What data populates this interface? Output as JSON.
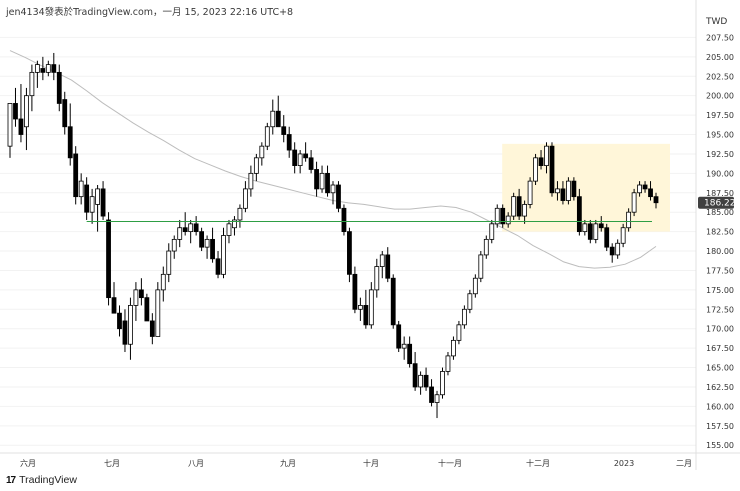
{
  "header": {
    "caption": "jen4134發表於TradingView.com，一月 15, 2023 22:16 UTC+8"
  },
  "footer": {
    "brand": "TradingView",
    "logo_icon": "tradingview-logo-icon"
  },
  "colors": {
    "up_body": "#ffffff",
    "up_outline": "#000000",
    "down_body": "#000000",
    "moving_average": "#bdbdbd",
    "support_line": "#2e9e44",
    "highlight_zone": "#fff6d9",
    "grid": "#f2f2f2",
    "price_badge": "#404040"
  },
  "chart_data": {
    "type": "candlestick",
    "currency": "TWD",
    "ylim": [
      154,
      210
    ],
    "y_ticks": [
      155.0,
      157.5,
      160.0,
      162.5,
      165.0,
      167.5,
      170.0,
      172.5,
      175.0,
      177.5,
      180.0,
      182.5,
      185.0,
      187.5,
      190.0,
      192.5,
      195.0,
      197.5,
      200.0,
      202.5,
      205.0,
      207.5
    ],
    "x_labels": [
      "六月",
      "七月",
      "八月",
      "九月",
      "十月",
      "十一月",
      "十二月",
      "2023",
      "二月"
    ],
    "last_price": "186.22",
    "support_level": 183.8,
    "highlight_zone": {
      "from": "十一月 late",
      "to": "2023 Jan",
      "price_range": [
        182.5,
        193.8
      ]
    },
    "moving_average_series": [
      [
        205.8,
        204.9,
        203.9,
        203.0,
        202.0,
        200.6,
        199.1,
        197.8,
        196.5,
        195.3,
        194.2,
        193.0,
        191.9,
        191.1,
        190.3,
        189.6,
        189.0,
        188.5,
        188.0,
        187.5,
        187.0,
        186.5,
        186.2,
        186.0,
        185.7,
        185.4,
        185.4,
        185.6,
        185.8,
        185.6,
        185.0,
        184.0,
        183.0,
        182.0,
        180.7,
        179.7,
        178.6,
        178.0,
        177.8,
        177.9,
        178.3,
        179.2,
        180.6
      ]
    ],
    "candles": [
      [
        193.5,
        199.0,
        192.0,
        199.0
      ],
      [
        199.0,
        201.0,
        196.0,
        197.0
      ],
      [
        197.0,
        201.5,
        194.0,
        195.0
      ],
      [
        196.0,
        201.0,
        193.0,
        200.0
      ],
      [
        200.0,
        204.0,
        198.0,
        203.0
      ],
      [
        203.0,
        204.5,
        201.0,
        204.0
      ],
      [
        203.5,
        205.0,
        202.0,
        203.0
      ],
      [
        203.0,
        204.5,
        202.5,
        204.0
      ],
      [
        204.0,
        205.5,
        202.0,
        203.0
      ],
      [
        203.0,
        204.0,
        198.0,
        199.0
      ],
      [
        199.5,
        200.5,
        195.0,
        196.0
      ],
      [
        196.0,
        199.0,
        191.0,
        192.0
      ],
      [
        192.5,
        193.5,
        186.0,
        187.0
      ],
      [
        187.0,
        190.0,
        186.0,
        189.0
      ],
      [
        188.5,
        189.5,
        184.0,
        185.0
      ],
      [
        185.0,
        188.0,
        183.5,
        187.0
      ],
      [
        186.0,
        188.5,
        182.5,
        188.0
      ],
      [
        188.0,
        189.0,
        184.0,
        184.5
      ],
      [
        184.0,
        185.0,
        173.0,
        174.0
      ],
      [
        174.0,
        176.0,
        172.0,
        172.0
      ],
      [
        172.0,
        173.0,
        169.0,
        170.0
      ],
      [
        171.0,
        172.5,
        167.0,
        168.0
      ],
      [
        168.0,
        174.0,
        166.0,
        173.0
      ],
      [
        173.0,
        176.0,
        171.0,
        175.0
      ],
      [
        175.0,
        176.5,
        173.0,
        174.0
      ],
      [
        174.0,
        174.5,
        171.0,
        171.0
      ],
      [
        171.0,
        172.0,
        168.0,
        169.0
      ],
      [
        169.0,
        176.0,
        169.0,
        175.0
      ],
      [
        175.0,
        178.0,
        173.5,
        177.0
      ],
      [
        177.0,
        181.0,
        176.0,
        180.0
      ],
      [
        180.0,
        182.0,
        179.0,
        181.5
      ],
      [
        181.5,
        184.0,
        180.5,
        183.0
      ],
      [
        183.0,
        185.0,
        182.0,
        182.5
      ],
      [
        182.5,
        184.0,
        181.0,
        183.5
      ],
      [
        183.5,
        184.5,
        182.0,
        182.5
      ],
      [
        182.5,
        183.0,
        180.0,
        180.5
      ],
      [
        180.5,
        182.0,
        179.0,
        181.5
      ],
      [
        181.5,
        183.0,
        178.5,
        179.0
      ],
      [
        179.0,
        180.0,
        176.5,
        177.0
      ],
      [
        177.0,
        183.0,
        176.5,
        182.0
      ],
      [
        182.0,
        184.0,
        181.0,
        183.5
      ],
      [
        183.0,
        184.5,
        182.0,
        184.0
      ],
      [
        184.0,
        186.0,
        183.0,
        185.5
      ],
      [
        185.5,
        189.0,
        185.0,
        188.0
      ],
      [
        188.0,
        191.0,
        187.0,
        190.0
      ],
      [
        190.0,
        192.5,
        189.0,
        192.0
      ],
      [
        192.0,
        194.0,
        191.0,
        193.5
      ],
      [
        193.5,
        196.5,
        193.0,
        196.0
      ],
      [
        196.0,
        199.5,
        195.0,
        198.0
      ],
      [
        198.0,
        200.0,
        196.0,
        196.0
      ],
      [
        196.0,
        197.5,
        194.0,
        195.0
      ],
      [
        195.0,
        196.0,
        192.0,
        193.0
      ],
      [
        193.0,
        194.0,
        190.0,
        191.0
      ],
      [
        191.0,
        193.0,
        190.0,
        192.5
      ],
      [
        192.5,
        194.0,
        191.5,
        192.0
      ],
      [
        192.0,
        193.0,
        190.0,
        190.5
      ],
      [
        190.5,
        191.5,
        187.0,
        188.0
      ],
      [
        188.0,
        191.0,
        187.5,
        190.0
      ],
      [
        190.0,
        191.0,
        187.0,
        187.5
      ],
      [
        187.5,
        189.0,
        186.0,
        188.5
      ],
      [
        188.5,
        189.0,
        185.0,
        185.5
      ],
      [
        185.5,
        186.0,
        182.0,
        182.5
      ],
      [
        182.5,
        183.0,
        176.0,
        177.0
      ],
      [
        177.0,
        178.0,
        172.0,
        172.5
      ],
      [
        172.5,
        174.0,
        171.0,
        173.0
      ],
      [
        173.0,
        175.0,
        170.0,
        170.5
      ],
      [
        170.5,
        176.0,
        170.0,
        175.0
      ],
      [
        175.0,
        179.0,
        174.0,
        178.0
      ],
      [
        178.0,
        180.0,
        176.5,
        179.5
      ],
      [
        179.5,
        180.5,
        176.0,
        176.5
      ],
      [
        176.5,
        177.0,
        170.0,
        170.5
      ],
      [
        170.5,
        171.0,
        167.0,
        167.5
      ],
      [
        167.5,
        169.0,
        166.0,
        168.0
      ],
      [
        168.0,
        169.0,
        165.0,
        165.5
      ],
      [
        165.5,
        167.0,
        162.0,
        162.5
      ],
      [
        162.5,
        164.5,
        161.5,
        164.0
      ],
      [
        164.0,
        165.0,
        162.0,
        162.5
      ],
      [
        162.5,
        163.5,
        160.0,
        160.5
      ],
      [
        160.5,
        162.0,
        158.5,
        161.5
      ],
      [
        161.5,
        165.0,
        161.0,
        164.5
      ],
      [
        164.5,
        167.0,
        164.0,
        166.5
      ],
      [
        166.5,
        169.0,
        166.0,
        168.5
      ],
      [
        168.5,
        171.0,
        168.0,
        170.5
      ],
      [
        170.5,
        173.0,
        170.0,
        172.5
      ],
      [
        172.5,
        175.0,
        172.0,
        174.5
      ],
      [
        174.5,
        177.0,
        174.0,
        176.5
      ],
      [
        176.5,
        180.0,
        176.0,
        179.5
      ],
      [
        179.5,
        182.0,
        179.0,
        181.5
      ],
      [
        181.5,
        184.0,
        181.0,
        183.5
      ],
      [
        183.5,
        186.0,
        183.0,
        185.5
      ],
      [
        185.5,
        186.0,
        183.0,
        183.5
      ],
      [
        183.5,
        185.0,
        183.0,
        184.5
      ],
      [
        184.5,
        187.5,
        184.0,
        187.0
      ],
      [
        187.0,
        188.0,
        184.0,
        184.5
      ],
      [
        184.5,
        186.5,
        183.5,
        186.0
      ],
      [
        186.0,
        189.5,
        185.5,
        189.0
      ],
      [
        189.0,
        192.5,
        188.5,
        192.0
      ],
      [
        192.0,
        193.0,
        190.5,
        191.0
      ],
      [
        191.0,
        194.0,
        190.0,
        193.5
      ],
      [
        193.5,
        194.0,
        187.0,
        187.5
      ],
      [
        187.5,
        189.0,
        186.5,
        188.0
      ],
      [
        188.0,
        189.0,
        186.0,
        186.5
      ],
      [
        186.5,
        189.5,
        186.0,
        189.0
      ],
      [
        189.0,
        189.5,
        186.5,
        187.0
      ],
      [
        187.0,
        188.0,
        182.0,
        182.5
      ],
      [
        182.5,
        184.0,
        182.0,
        183.5
      ],
      [
        183.5,
        184.0,
        181.0,
        181.5
      ],
      [
        181.5,
        184.0,
        181.0,
        183.5
      ],
      [
        183.5,
        184.5,
        182.5,
        183.0
      ],
      [
        183.0,
        183.5,
        180.0,
        180.5
      ],
      [
        180.5,
        181.0,
        178.5,
        179.5
      ],
      [
        179.5,
        181.5,
        179.0,
        181.0
      ],
      [
        181.0,
        183.5,
        180.5,
        183.0
      ],
      [
        183.0,
        185.5,
        182.5,
        185.0
      ],
      [
        185.0,
        188.0,
        184.5,
        187.5
      ],
      [
        187.5,
        189.0,
        187.0,
        188.5
      ],
      [
        188.5,
        189.0,
        187.5,
        188.0
      ],
      [
        188.0,
        189.0,
        186.5,
        187.0
      ],
      [
        187.0,
        187.5,
        185.5,
        186.22
      ]
    ]
  }
}
